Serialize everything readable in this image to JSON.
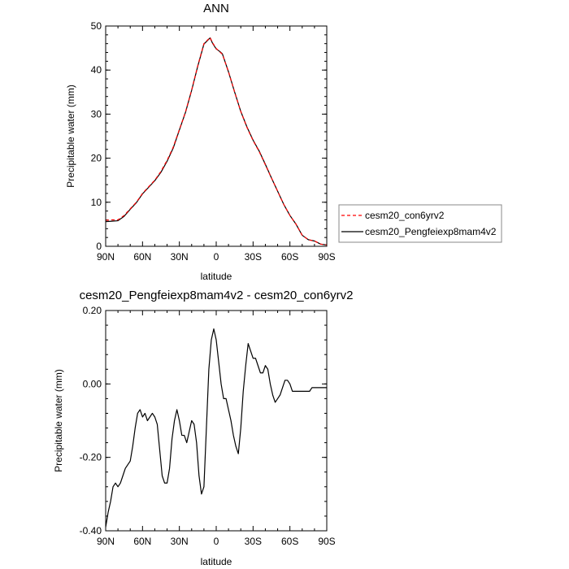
{
  "chart_data": [
    {
      "type": "line",
      "title": "ANN",
      "xlabel": "latitude",
      "ylabel": "Precipitable water (mm)",
      "xticks": [
        "90N",
        "60N",
        "30N",
        "0",
        "30S",
        "60S",
        "90S"
      ],
      "xlim": [
        90,
        -90
      ],
      "ylim": [
        0,
        50
      ],
      "yticks": [
        "0",
        "10",
        "20",
        "30",
        "40",
        "50"
      ],
      "legend_position": "right",
      "series": [
        {
          "name": "cesm20_con6yrv2",
          "color": "#ff0000",
          "dashed": true,
          "x": [
            90,
            85,
            80,
            75,
            70,
            65,
            60,
            55,
            50,
            45,
            40,
            35,
            30,
            25,
            20,
            15,
            10,
            5,
            3,
            0,
            -3,
            -5,
            -10,
            -15,
            -20,
            -25,
            -30,
            -35,
            -40,
            -45,
            -50,
            -55,
            -60,
            -65,
            -70,
            -75,
            -80,
            -85,
            -90
          ],
          "y": [
            5.9,
            6.0,
            6.0,
            7.0,
            8.5,
            10.0,
            12.0,
            13.5,
            15.0,
            17.0,
            19.5,
            22.5,
            26.5,
            30.5,
            35.5,
            41.0,
            46.0,
            47.4,
            46.2,
            44.9,
            44.1,
            43.6,
            39.6,
            35.0,
            30.6,
            27.0,
            24.0,
            21.5,
            18.5,
            15.5,
            12.5,
            9.5,
            7.0,
            5.0,
            2.5,
            1.5,
            1.2,
            0.5,
            0.3
          ]
        },
        {
          "name": "cesm20_Pengfeiexp8mam4v2",
          "color": "#000000",
          "dashed": false,
          "x": [
            90,
            85,
            80,
            75,
            70,
            65,
            60,
            55,
            50,
            45,
            40,
            35,
            30,
            25,
            20,
            15,
            10,
            5,
            3,
            0,
            -3,
            -5,
            -10,
            -15,
            -20,
            -25,
            -30,
            -35,
            -40,
            -45,
            -50,
            -55,
            -60,
            -65,
            -70,
            -75,
            -80,
            -85,
            -90
          ],
          "y": [
            5.6,
            5.7,
            5.8,
            6.8,
            8.4,
            9.9,
            11.9,
            13.4,
            14.9,
            16.8,
            19.3,
            22.3,
            26.4,
            30.4,
            35.4,
            40.9,
            45.9,
            47.3,
            46.1,
            44.8,
            44.2,
            43.7,
            39.6,
            35.0,
            30.6,
            27.1,
            24.1,
            21.6,
            18.6,
            15.5,
            12.5,
            9.5,
            7.0,
            5.0,
            2.5,
            1.5,
            1.2,
            0.5,
            0.3
          ]
        }
      ]
    },
    {
      "type": "line",
      "title": "cesm20_Pengfeiexp8mam4v2 - cesm20_con6yrv2",
      "xlabel": "latitude",
      "ylabel": "Precipitable water (mm)",
      "xticks": [
        "90N",
        "60N",
        "30N",
        "0",
        "30S",
        "60S",
        "90S"
      ],
      "xlim": [
        90,
        -90
      ],
      "ylim": [
        -0.4,
        0.2
      ],
      "yticks": [
        "-0.40",
        "-0.20",
        "0.00",
        "0.20"
      ],
      "series": [
        {
          "color": "#000000",
          "x": [
            90,
            88,
            86,
            84,
            82,
            80,
            78,
            76,
            74,
            72,
            70,
            68,
            66,
            64,
            62,
            60,
            58,
            56,
            54,
            52,
            50,
            48,
            46,
            44,
            42,
            40,
            38,
            36,
            34,
            32,
            30,
            28,
            26,
            24,
            22,
            20,
            18,
            16,
            14,
            12,
            10,
            8,
            6,
            4,
            2,
            0,
            -2,
            -4,
            -6,
            -8,
            -10,
            -12,
            -14,
            -16,
            -18,
            -20,
            -22,
            -24,
            -26,
            -28,
            -30,
            -32,
            -34,
            -36,
            -38,
            -40,
            -42,
            -44,
            -46,
            -48,
            -50,
            -52,
            -54,
            -56,
            -58,
            -60,
            -62,
            -64,
            -66,
            -68,
            -70,
            -72,
            -74,
            -76,
            -78,
            -80,
            -82,
            -84,
            -86,
            -88,
            -90
          ],
          "y": [
            -0.39,
            -0.35,
            -0.32,
            -0.28,
            -0.27,
            -0.28,
            -0.27,
            -0.25,
            -0.23,
            -0.22,
            -0.21,
            -0.17,
            -0.12,
            -0.08,
            -0.07,
            -0.09,
            -0.08,
            -0.1,
            -0.09,
            -0.08,
            -0.09,
            -0.11,
            -0.18,
            -0.25,
            -0.27,
            -0.27,
            -0.23,
            -0.15,
            -0.1,
            -0.07,
            -0.1,
            -0.14,
            -0.14,
            -0.16,
            -0.13,
            -0.1,
            -0.11,
            -0.16,
            -0.25,
            -0.3,
            -0.28,
            -0.12,
            0.04,
            0.12,
            0.15,
            0.12,
            0.06,
            0.0,
            -0.04,
            -0.04,
            -0.07,
            -0.1,
            -0.14,
            -0.17,
            -0.19,
            -0.12,
            -0.02,
            0.05,
            0.11,
            0.09,
            0.07,
            0.07,
            0.05,
            0.03,
            0.03,
            0.05,
            0.04,
            0.0,
            -0.03,
            -0.05,
            -0.04,
            -0.03,
            -0.01,
            0.01,
            0.01,
            0.0,
            -0.02,
            -0.02,
            -0.02,
            -0.02,
            -0.02,
            -0.02,
            -0.02,
            -0.02,
            -0.01,
            -0.01,
            -0.01,
            -0.01,
            -0.01,
            -0.01,
            -0.01
          ]
        }
      ]
    }
  ]
}
